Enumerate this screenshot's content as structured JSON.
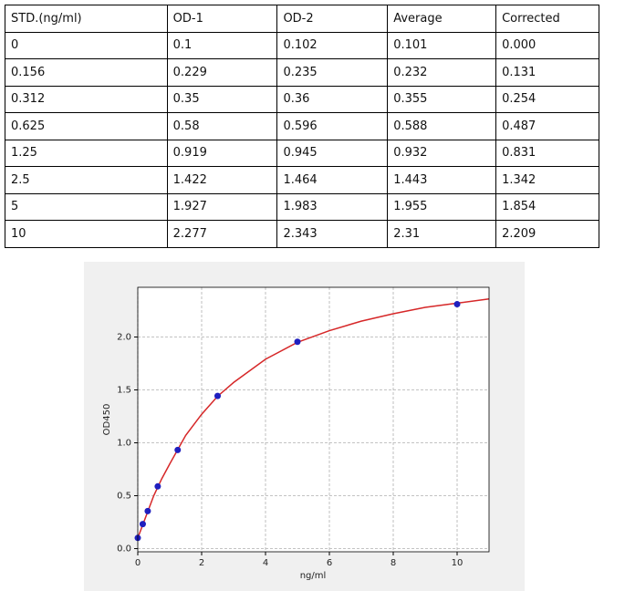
{
  "table": {
    "header": [
      "STD.(ng/ml)",
      "OD-1",
      "OD-2",
      "Average",
      "Corrected"
    ],
    "rows": [
      [
        "0",
        "0.1",
        "0.102",
        "0.101",
        "0.000"
      ],
      [
        "0.156",
        "0.229",
        "0.235",
        "0.232",
        "0.131"
      ],
      [
        "0.312",
        "0.35",
        "0.36",
        "0.355",
        "0.254"
      ],
      [
        "0.625",
        "0.58",
        "0.596",
        "0.588",
        "0.487"
      ],
      [
        "1.25",
        "0.919",
        "0.945",
        "0.932",
        "0.831"
      ],
      [
        "2.5",
        "1.422",
        "1.464",
        "1.443",
        "1.342"
      ],
      [
        "5",
        "1.927",
        "1.983",
        "1.955",
        "1.854"
      ],
      [
        "10",
        "2.277",
        "2.343",
        "2.31",
        "2.209"
      ]
    ]
  },
  "chart_data": {
    "type": "scatter",
    "xlabel": "ng/ml",
    "ylabel": "OD450",
    "xlim": [
      0,
      11
    ],
    "ylim": [
      -0.03,
      2.47
    ],
    "xticks": [
      0,
      2,
      4,
      6,
      8,
      10
    ],
    "yticks": [
      {
        "value": 0,
        "label": "0.0"
      },
      {
        "value": 0.5,
        "label": "0.5"
      },
      {
        "value": 1,
        "label": "1.0"
      },
      {
        "value": 1.5,
        "label": "1.5"
      },
      {
        "value": 2,
        "label": "2.0"
      }
    ],
    "grid": true,
    "series": [
      {
        "type": "scatter",
        "color": "#1f1fbf",
        "x": [
          0,
          0.156,
          0.312,
          0.625,
          1.25,
          2.5,
          5,
          10
        ],
        "values": [
          0.101,
          0.232,
          0.355,
          0.588,
          0.932,
          1.443,
          1.955,
          2.31
        ]
      },
      {
        "type": "line",
        "color": "#d62728",
        "x": [
          0,
          0.25,
          0.5,
          0.75,
          1,
          1.5,
          2,
          2.5,
          3,
          4,
          5,
          6,
          7,
          8,
          9,
          10,
          11
        ],
        "values": [
          0.1,
          0.3,
          0.5,
          0.66,
          0.8,
          1.07,
          1.27,
          1.44,
          1.57,
          1.79,
          1.95,
          2.06,
          2.15,
          2.22,
          2.28,
          2.32,
          2.36
        ]
      }
    ]
  }
}
